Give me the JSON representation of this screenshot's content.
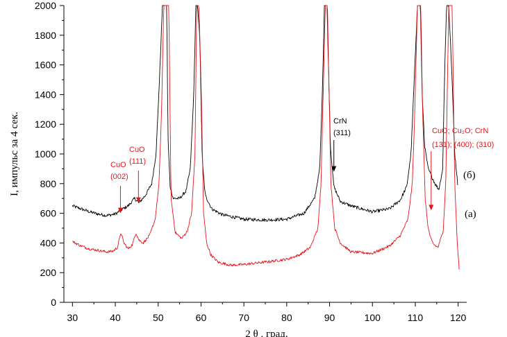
{
  "chart_data": {
    "type": "line",
    "xlabel": "2 θ , град.",
    "ylabel": "I, импульс за 4 сек.",
    "xlim": [
      28,
      122
    ],
    "ylim": [
      0,
      2000
    ],
    "x_ticks": [
      30,
      40,
      50,
      60,
      70,
      80,
      90,
      100,
      110,
      120
    ],
    "y_ticks": [
      0,
      200,
      400,
      600,
      800,
      1000,
      1200,
      1400,
      1600,
      1800,
      2000
    ],
    "grid": false,
    "series": [
      {
        "name": "(б)",
        "color": "#000000",
        "x": [
          30,
          32,
          34,
          36,
          38,
          40,
          41.5,
          43,
          44.5,
          45.5,
          47,
          48.5,
          49.5,
          50.3,
          51,
          51.5,
          52,
          52.3,
          52.8,
          53.5,
          55,
          56.5,
          57.5,
          58.3,
          58.8,
          59.2,
          59.7,
          60.3,
          61,
          62.5,
          65,
          70,
          75,
          80,
          84,
          86.5,
          87.7,
          88.3,
          88.8,
          89.4,
          90.2,
          91,
          92.5,
          95,
          100,
          104,
          106.5,
          108,
          109,
          109.6,
          110.5,
          111.2,
          111.6,
          112.2,
          113,
          113.8,
          114.6,
          115.5,
          116.4,
          116.8,
          117.3,
          117.8,
          118.6,
          119.2,
          119.7,
          120
        ],
        "y": [
          650,
          630,
          610,
          595,
          585,
          595,
          625,
          650,
          700,
          670,
          720,
          800,
          1000,
          1500,
          2000,
          2000,
          2000,
          1100,
          780,
          700,
          700,
          750,
          900,
          1400,
          2000,
          2000,
          1800,
          950,
          720,
          630,
          590,
          560,
          555,
          560,
          600,
          700,
          900,
          1400,
          2000,
          2000,
          1050,
          780,
          680,
          650,
          610,
          630,
          690,
          780,
          1000,
          1400,
          2000,
          2000,
          1400,
          1050,
          900,
          850,
          800,
          760,
          900,
          1500,
          2000,
          2000,
          1500,
          1000,
          860,
          760
        ]
      },
      {
        "name": "(а)",
        "color": "#e8141b",
        "x": [
          30,
          32,
          34,
          36,
          38,
          39.5,
          40.5,
          41.3,
          42,
          43,
          44,
          44.8,
          45.5,
          46.5,
          48,
          49.3,
          50.2,
          50.8,
          51.3,
          52,
          52.5,
          53,
          54,
          55.5,
          56.8,
          57.8,
          58.6,
          59,
          59.5,
          60,
          60.6,
          61.3,
          62.3,
          64,
          67,
          70,
          73,
          76,
          80,
          83,
          85.5,
          87.3,
          88,
          88.5,
          89,
          89.5,
          90.3,
          91.2,
          92.5,
          95,
          100,
          104,
          106.5,
          108.3,
          109.3,
          109.8,
          110.5,
          111.3,
          111.7,
          112.3,
          113,
          113.7,
          114.3,
          115.3,
          116.5,
          117.1,
          117.8,
          118.6,
          119.2,
          119.8,
          120.3
        ],
        "y": [
          410,
          380,
          360,
          350,
          340,
          345,
          370,
          470,
          400,
          360,
          390,
          470,
          420,
          400,
          450,
          560,
          800,
          1300,
          2000,
          2000,
          2000,
          700,
          470,
          430,
          480,
          600,
          1000,
          2000,
          2000,
          1500,
          600,
          400,
          320,
          270,
          250,
          255,
          265,
          275,
          290,
          320,
          370,
          500,
          800,
          1400,
          2000,
          2000,
          800,
          500,
          400,
          340,
          330,
          380,
          450,
          560,
          800,
          1200,
          2000,
          2000,
          1300,
          700,
          500,
          420,
          390,
          370,
          480,
          800,
          2000,
          2000,
          800,
          400,
          200
        ]
      }
    ],
    "annotations": [
      {
        "lines": [
          "CuO",
          "(002)"
        ],
        "color": "#e8141b",
        "arrow_x": 41.2,
        "arrow_y": 600
      },
      {
        "lines": [
          "CuO",
          "(111)"
        ],
        "color": "#e8141b",
        "arrow_x": 45.4,
        "arrow_y": 670
      },
      {
        "lines": [
          "CrN",
          "(311)"
        ],
        "color": "#000000",
        "arrow_x": 91.0,
        "arrow_y": 880
      },
      {
        "lines": [
          "CuO; Cu₂O; CrN",
          "(131); (400); (310)"
        ],
        "color": "#e8141b",
        "arrow_x": 113.7,
        "arrow_y": 620
      }
    ],
    "curve_labels": [
      "(б)",
      "(а)"
    ]
  }
}
